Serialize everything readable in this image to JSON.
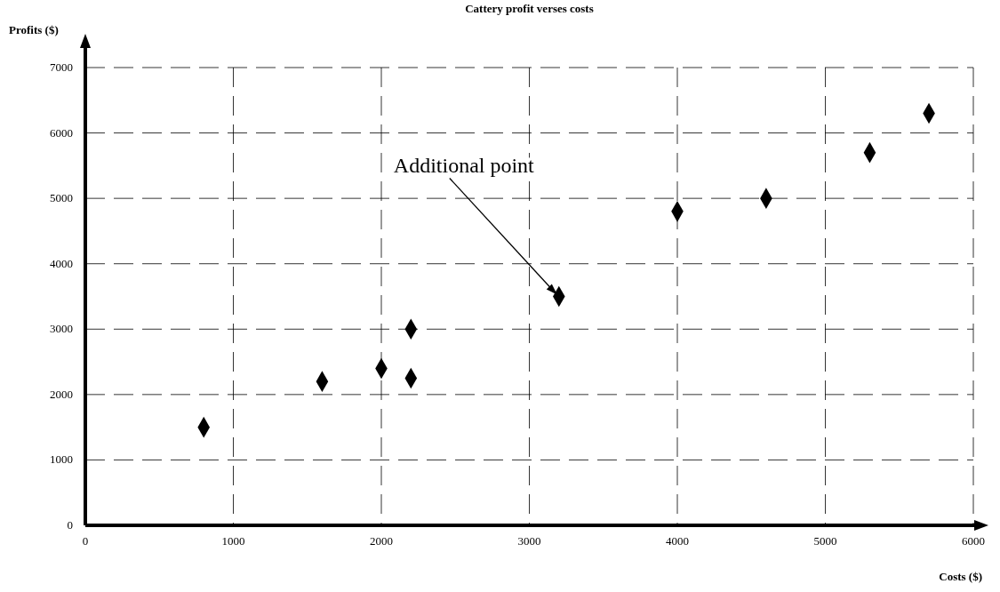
{
  "chart_data": {
    "type": "scatter",
    "title": "Cattery profit verses costs",
    "xlabel": "Costs ($)",
    "ylabel": "Profits ($)",
    "x": [
      800,
      1600,
      2000,
      2200,
      2200,
      3200,
      4000,
      4600,
      5300,
      5700
    ],
    "series": [
      {
        "color": "#000000",
        "values": [
          1500,
          2200,
          2400,
          2250,
          3000,
          3500,
          4800,
          5000,
          5700,
          6300
        ]
      }
    ],
    "xlim": [
      0,
      6000
    ],
    "ylim": [
      0,
      7000
    ],
    "xticks": [
      0,
      1000,
      2000,
      3000,
      4000,
      5000,
      6000
    ],
    "yticks": [
      0,
      1000,
      2000,
      3000,
      4000,
      5000,
      6000,
      7000
    ],
    "grid": true,
    "marker": "diamond",
    "annotations": [
      {
        "text": "Additional point",
        "x": 3200,
        "y": 3500
      }
    ]
  }
}
